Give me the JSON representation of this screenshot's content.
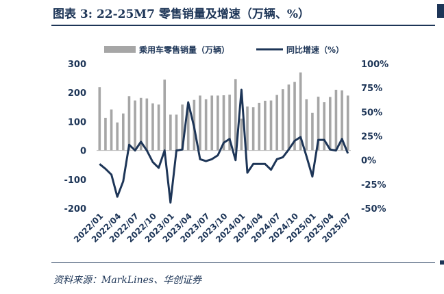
{
  "figure": {
    "title": "图表 3:  22-25M7 零售销量及增速（万辆、%）",
    "source": "资料来源：MarkLines、华创证券"
  },
  "colors": {
    "bar": "#a6a6a6",
    "line": "#1d3557",
    "text": "#1d3557"
  },
  "chart_data": {
    "type": "bar+line",
    "x": [
      "2022/01",
      "2022/02",
      "2022/03",
      "2022/04",
      "2022/05",
      "2022/06",
      "2022/07",
      "2022/08",
      "2022/09",
      "2022/10",
      "2022/11",
      "2022/12",
      "2023/01",
      "2023/02",
      "2023/03",
      "2023/04",
      "2023/05",
      "2023/06",
      "2023/07",
      "2023/08",
      "2023/09",
      "2023/10",
      "2023/11",
      "2023/12",
      "2024/01",
      "2024/02",
      "2024/03",
      "2024/04",
      "2024/05",
      "2024/06",
      "2024/07",
      "2024/08",
      "2024/09",
      "2024/10",
      "2024/11",
      "2024/12",
      "2025/01",
      "2025/02",
      "2025/03",
      "2025/04",
      "2025/05",
      "2025/06",
      "2025/07"
    ],
    "x_tick_labels": [
      "2022/01",
      "2022/04",
      "2022/07",
      "2022/10",
      "2023/01",
      "2023/04",
      "2023/07",
      "2023/10",
      "2024/01",
      "2024/04",
      "2024/07",
      "2024/10",
      "2025/01",
      "2025/04",
      "2025/07"
    ],
    "series": [
      {
        "name": "乘用车零售销量（万辆）",
        "type": "bar",
        "axis": "left",
        "values": [
          219,
          113,
          142,
          97,
          128,
          188,
          173,
          182,
          180,
          163,
          159,
          245,
          124,
          124,
          159,
          163,
          175,
          190,
          177,
          190,
          190,
          191,
          193,
          247,
          110,
          152,
          150,
          165,
          172,
          173,
          192,
          212,
          228,
          237,
          270,
          177,
          130,
          186,
          167,
          185,
          210,
          208,
          190
        ]
      },
      {
        "name": "同比增速（%）",
        "type": "line",
        "axis": "right",
        "values": [
          -4,
          -9,
          -15,
          -38,
          -22,
          16,
          10,
          19,
          10,
          -2,
          -8,
          10,
          -44,
          10,
          11,
          60,
          34,
          1,
          -1,
          1,
          5,
          18,
          22,
          0,
          73,
          -13,
          -4,
          -4,
          -4,
          -10,
          1,
          3,
          11,
          20,
          24,
          4,
          -17,
          21,
          21,
          11,
          10,
          22,
          7
        ]
      }
    ],
    "y_left": {
      "ylim": [
        -200,
        300
      ],
      "ticks": [
        "300",
        "200",
        "100",
        "0",
        "-100",
        "-200"
      ]
    },
    "y_right": {
      "ylim": [
        -50,
        100
      ],
      "ticks": [
        "100%",
        "75%",
        "50%",
        "25%",
        "0%",
        "-25%",
        "-50%"
      ]
    },
    "legend": "top",
    "grid": false
  }
}
